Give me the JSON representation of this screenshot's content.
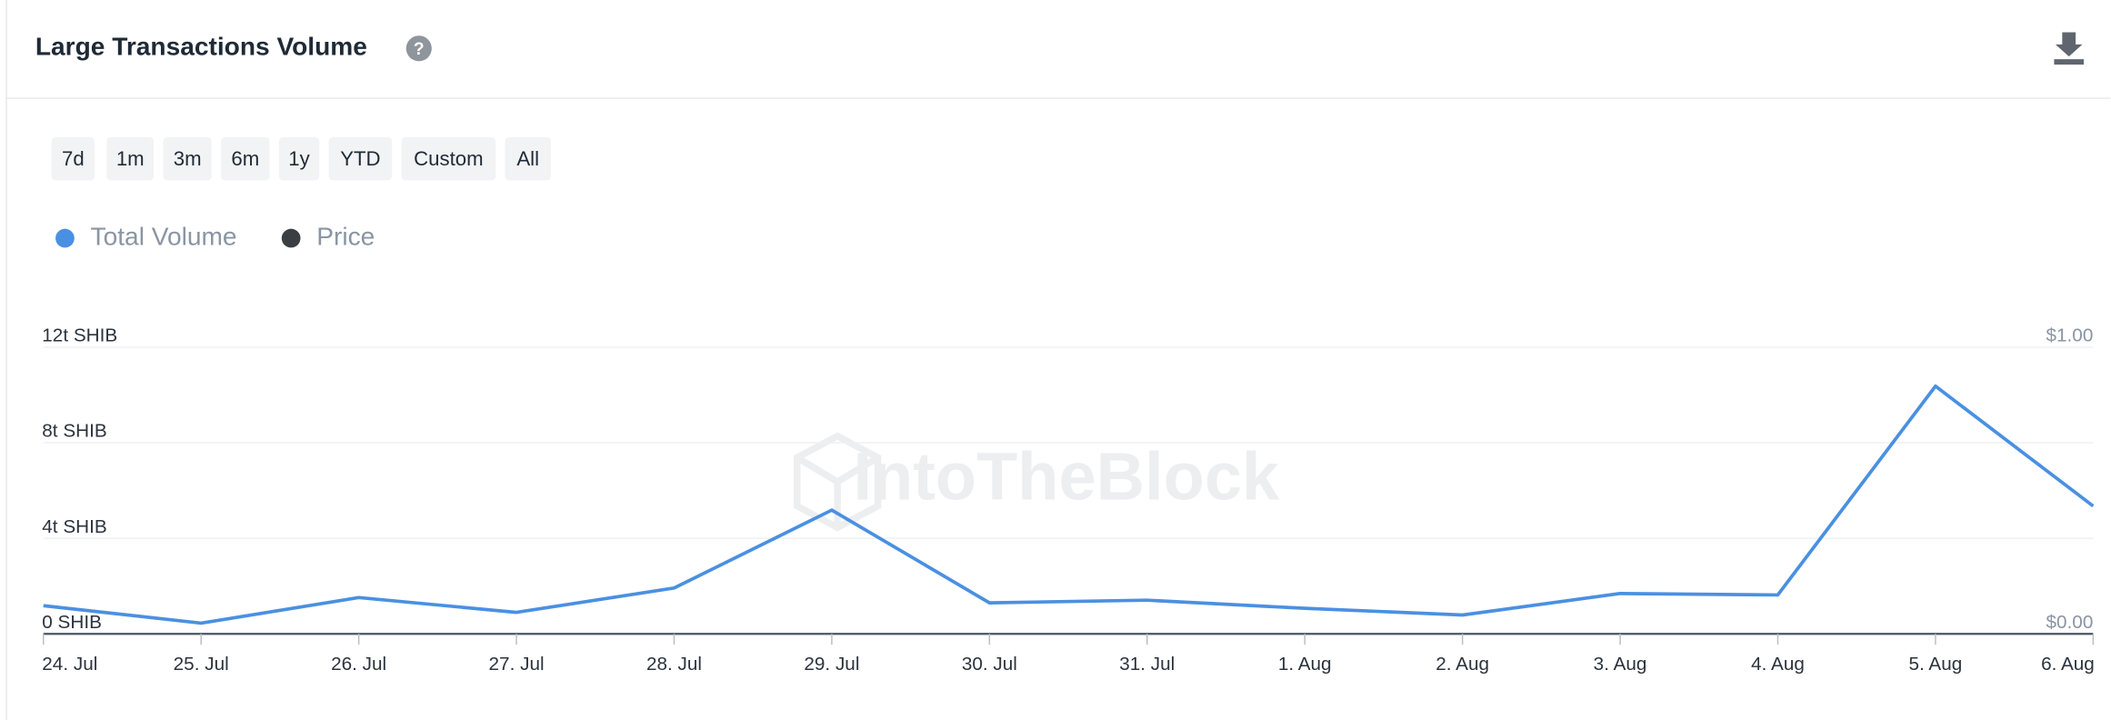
{
  "title": "Large Transactions Volume",
  "buttons": [
    "7d",
    "1m",
    "3m",
    "6m",
    "1y",
    "YTD",
    "Custom",
    "All"
  ],
  "watermark": "IntoTheBlock",
  "chart_data": {
    "type": "line",
    "categories": [
      "24. Jul",
      "25. Jul",
      "26. Jul",
      "27. Jul",
      "28. Jul",
      "29. Jul",
      "30. Jul",
      "31. Jul",
      "1. Aug",
      "2. Aug",
      "3. Aug",
      "4. Aug",
      "5. Aug",
      "6. Aug"
    ],
    "series": [
      {
        "name": "Total Volume",
        "color": "#4a90e2",
        "values": [
          1.18,
          0.45,
          1.52,
          0.9,
          1.92,
          5.18,
          1.3,
          1.41,
          1.07,
          0.79,
          1.69,
          1.63,
          10.37,
          5.35
        ]
      },
      {
        "name": "Price",
        "color": "#3a3f44",
        "axis": "y2",
        "values": [
          null,
          null,
          null,
          null,
          null,
          null,
          null,
          null,
          null,
          null,
          null,
          null,
          null,
          null
        ]
      }
    ],
    "ylim": [
      0,
      12
    ],
    "yticks": [
      {
        "value": 0,
        "label": "0 SHIB"
      },
      {
        "value": 4,
        "label": "4t SHIB"
      },
      {
        "value": 8,
        "label": "8t SHIB"
      },
      {
        "value": 12,
        "label": "12t SHIB"
      }
    ],
    "y2lim": [
      0,
      1
    ],
    "y2ticks": [
      {
        "value": 0,
        "label": "$0.00"
      },
      {
        "value": 1,
        "label": "$1.00"
      }
    ],
    "grid": true
  }
}
